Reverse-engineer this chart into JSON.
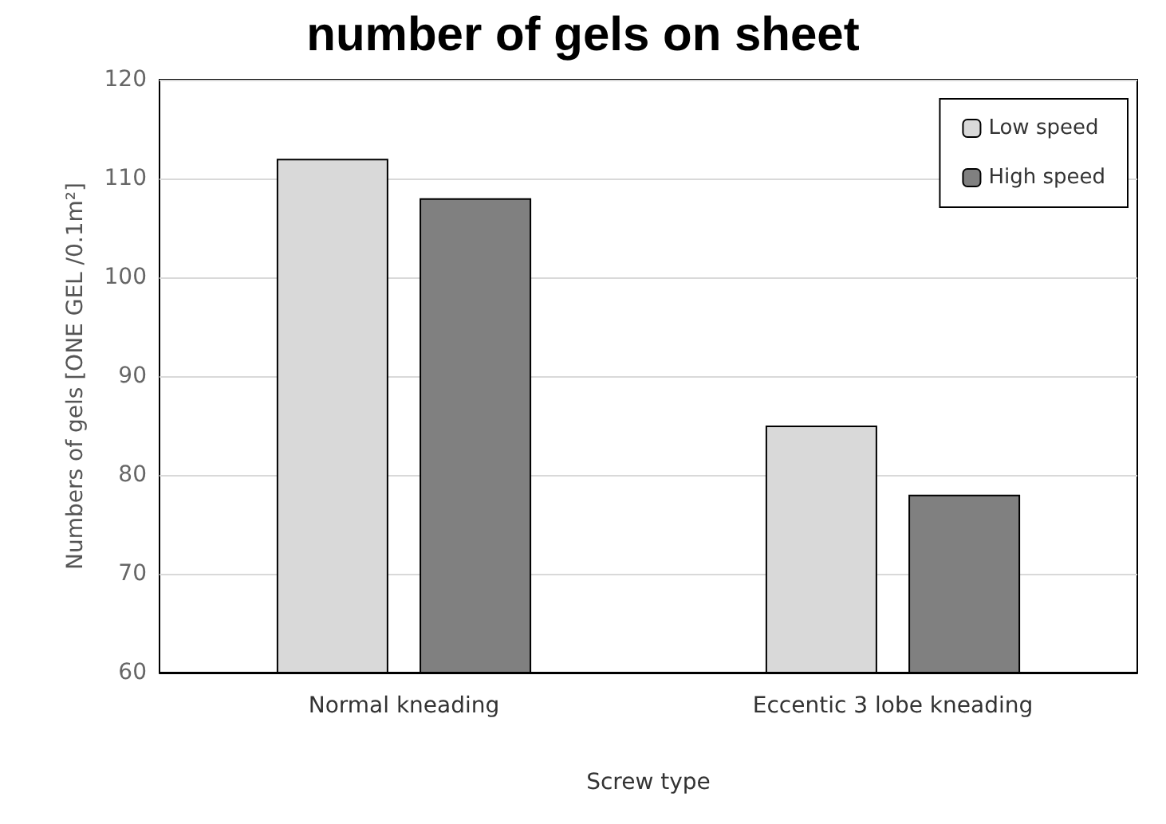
{
  "chart_data": {
    "type": "bar",
    "title": "number of gels on sheet",
    "xlabel": "Screw type",
    "ylabel": "Numbers of gels [ONE GEL /0.1m²]",
    "categories": [
      "Normal kneading",
      "Eccentic 3 lobe kneading"
    ],
    "series": [
      {
        "name": "Low speed",
        "color": "#d9d9d9",
        "values": [
          112,
          85
        ]
      },
      {
        "name": "High speed",
        "color": "#808080",
        "values": [
          108,
          78
        ]
      }
    ],
    "ylim": [
      60,
      120
    ],
    "yticks": [
      60,
      70,
      80,
      90,
      100,
      110,
      120
    ],
    "grid": "y",
    "legend": "top right"
  }
}
